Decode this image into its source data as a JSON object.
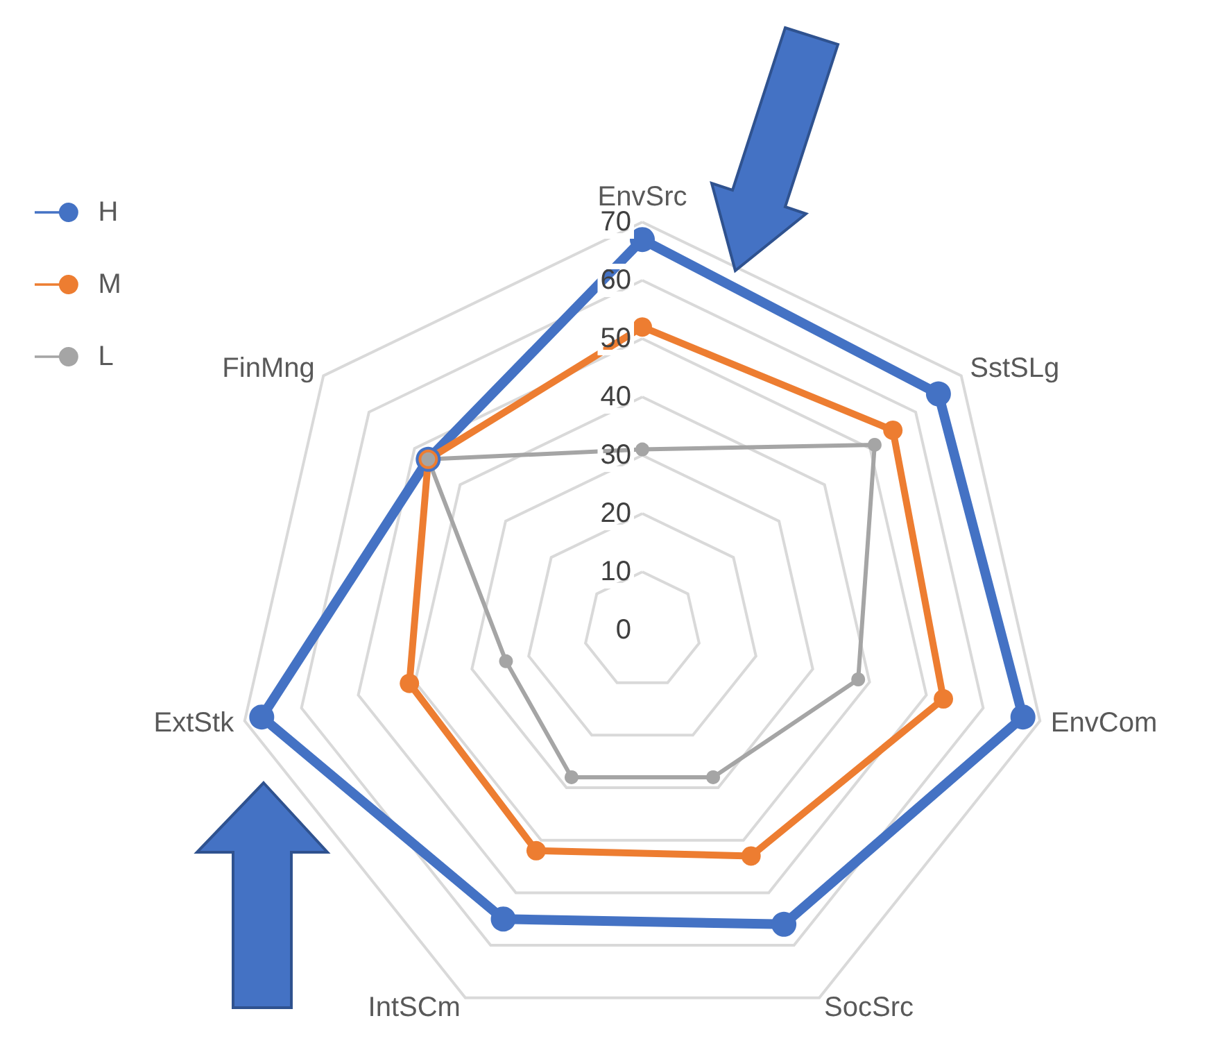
{
  "chart_data": {
    "type": "radar",
    "categories": [
      "EnvSrc",
      "SstSLg",
      "EnvCom",
      "SocSrc",
      "IntSCm",
      "ExtStk",
      "FinMng"
    ],
    "series": [
      {
        "name": "H",
        "color": "#4472c4",
        "values": [
          67,
          65,
          67,
          56,
          55,
          67,
          47
        ]
      },
      {
        "name": "M",
        "color": "#ed7d31",
        "values": [
          52,
          55,
          53,
          43,
          42,
          41,
          47
        ]
      },
      {
        "name": "L",
        "color": "#a5a5a5",
        "values": [
          31,
          51,
          38,
          28,
          28,
          24,
          47
        ]
      }
    ],
    "ylim": [
      0,
      70
    ],
    "yticks": [
      0,
      10,
      20,
      30,
      40,
      50,
      60,
      70
    ],
    "legend": "top left",
    "marker": "circle",
    "grid": true
  }
}
